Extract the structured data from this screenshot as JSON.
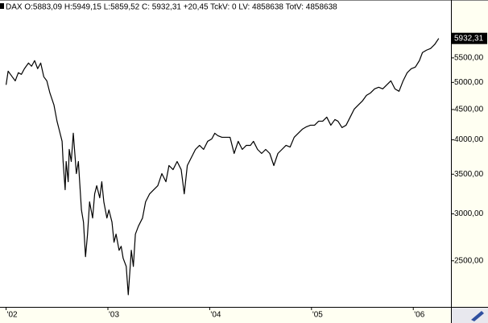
{
  "chart_data": {
    "type": "line",
    "header": "DAX O:5883,09 H:5949,15 L:5859,52 C: 5932,31 +20,45 TckV: 0 LV: 4858638 TotV: 4858638",
    "x": [
      2002.0,
      2002.02,
      2002.06,
      2002.09,
      2002.12,
      2002.15,
      2002.18,
      2002.22,
      2002.25,
      2002.28,
      2002.31,
      2002.34,
      2002.37,
      2002.4,
      2002.43,
      2002.47,
      2002.5,
      2002.52,
      2002.55,
      2002.56,
      2002.58,
      2002.59,
      2002.61,
      2002.62,
      2002.64,
      2002.66,
      2002.69,
      2002.71,
      2002.74,
      2002.76,
      2002.78,
      2002.8,
      2002.82,
      2002.85,
      2002.87,
      2002.89,
      2002.92,
      2002.94,
      2002.96,
      2002.99,
      2003.01,
      2003.04,
      2003.06,
      2003.08,
      2003.11,
      2003.13,
      2003.15,
      2003.18,
      2003.2,
      2003.23,
      2003.25,
      2003.27,
      2003.3,
      2003.34,
      2003.37,
      2003.41,
      2003.45,
      2003.49,
      2003.53,
      2003.57,
      2003.6,
      2003.64,
      2003.68,
      2003.72,
      2003.75,
      2003.78,
      2003.82,
      2003.86,
      2003.9,
      2003.94,
      2003.98,
      2004.02,
      2004.05,
      2004.08,
      2004.12,
      2004.16,
      2004.2,
      2004.24,
      2004.28,
      2004.32,
      2004.36,
      2004.4,
      2004.43,
      2004.47,
      2004.51,
      2004.55,
      2004.59,
      2004.63,
      2004.67,
      2004.71,
      2004.75,
      2004.79,
      2004.83,
      2004.87,
      2004.91,
      2004.95,
      2004.99,
      2005.03,
      2005.07,
      2005.11,
      2005.15,
      2005.19,
      2005.23,
      2005.26,
      2005.3,
      2005.34,
      2005.38,
      2005.42,
      2005.46,
      2005.5,
      2005.54,
      2005.58,
      2005.62,
      2005.66,
      2005.7,
      2005.74,
      2005.78,
      2005.82,
      2005.86,
      2005.9,
      2005.94,
      2005.98,
      2006.02,
      2006.06,
      2006.09,
      2006.13,
      2006.17,
      2006.21,
      2006.25
    ],
    "values": [
      4953,
      5224,
      5111,
      5031,
      5192,
      5159,
      5274,
      5391,
      5324,
      5442,
      5274,
      5391,
      5111,
      5031,
      4800,
      4580,
      4301,
      4169,
      3977,
      3677,
      3295,
      3677,
      3399,
      3854,
      3677,
      4104,
      3508,
      3677,
      3046,
      2906,
      2540,
      2773,
      3143,
      2952,
      3243,
      3347,
      3193,
      3399,
      3143,
      2952,
      3046,
      2906,
      2687,
      2773,
      2604,
      2645,
      2524,
      2446,
      2191,
      2604,
      2446,
      2773,
      2861,
      2952,
      3143,
      3243,
      3295,
      3347,
      3508,
      3399,
      3620,
      3563,
      3677,
      3563,
      3243,
      3620,
      3735,
      3854,
      3915,
      3854,
      3977,
      4014,
      4104,
      4065,
      4040,
      4040,
      4040,
      3794,
      3977,
      3854,
      3915,
      3915,
      3977,
      3854,
      3794,
      3854,
      3794,
      3620,
      3794,
      3854,
      3915,
      3890,
      4040,
      4104,
      4169,
      4208,
      4234,
      4234,
      4301,
      4301,
      4369,
      4234,
      4328,
      4301,
      4195,
      4234,
      4369,
      4508,
      4580,
      4652,
      4755,
      4800,
      4876,
      4907,
      4876,
      4953,
      5031,
      4876,
      4831,
      5031,
      5192,
      5274,
      5307,
      5442,
      5615,
      5668,
      5704,
      5794,
      5932.31
    ],
    "color": "#000000",
    "log_y": true,
    "last_price": {
      "value": 5932.31,
      "label": "5932,31"
    },
    "xlim": [
      2001.94,
      2006.37
    ],
    "ylim": [
      2090,
      6510
    ],
    "xticks": [
      {
        "value": 2002,
        "label": "'02"
      },
      {
        "value": 2003,
        "label": "'03"
      },
      {
        "value": 2004,
        "label": "'04"
      },
      {
        "value": 2005,
        "label": "'05"
      },
      {
        "value": 2006,
        "label": "'06"
      }
    ],
    "yticks": [
      {
        "value": 2500,
        "label": "2500,00"
      },
      {
        "value": 3000,
        "label": "3000,00"
      },
      {
        "value": 3500,
        "label": "3500,00"
      },
      {
        "value": 4000,
        "label": "4000,00"
      },
      {
        "value": 4500,
        "label": "4500,00"
      },
      {
        "value": 5000,
        "label": "5000,00"
      },
      {
        "value": 5500,
        "label": "5500,00"
      }
    ]
  }
}
